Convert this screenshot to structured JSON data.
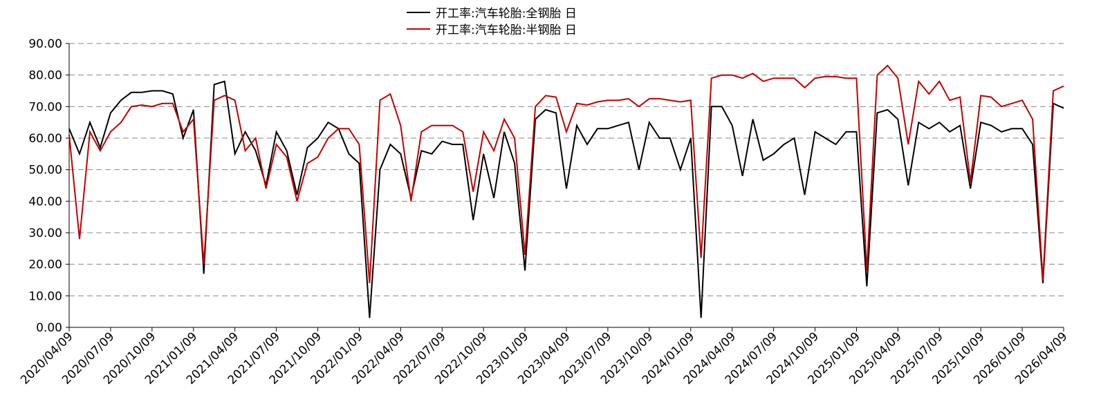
{
  "chart_data": {
    "type": "line",
    "categories": [
      "2020/04/09",
      null,
      null,
      null,
      "2020/07/09",
      null,
      null,
      null,
      "2020/10/09",
      null,
      null,
      null,
      "2021/01/09",
      null,
      null,
      null,
      "2021/04/09",
      null,
      null,
      null,
      "2021/07/09",
      null,
      null,
      null,
      "2021/10/09",
      null,
      null,
      null,
      "2022/01/09",
      null,
      null,
      null,
      "2022/04/09",
      null,
      null,
      null,
      "2022/07/09",
      null,
      null,
      null,
      "2022/10/09",
      null,
      null,
      null,
      "2023/01/09",
      null,
      null,
      null,
      "2023/04/09",
      null,
      null,
      null,
      "2023/07/09",
      null,
      null,
      null,
      "2023/10/09",
      null,
      null,
      null,
      "2024/01/09",
      null,
      null,
      null,
      "2024/04/09",
      null,
      null,
      null,
      "2024/07/09",
      null,
      null,
      null,
      "2024/10/09",
      null,
      null,
      null,
      "2025/01/09",
      null,
      null,
      null,
      "2025/04/09",
      null,
      null,
      null,
      "2025/07/09",
      null,
      null,
      null,
      "2025/10/09",
      null,
      null,
      null,
      "2026/01/09",
      null,
      null,
      null,
      "2026/04/09"
    ],
    "series": [
      {
        "name": "开工率:汽车轮胎:全钢胎 日",
        "color": "#000000",
        "values": [
          63,
          55,
          65,
          57,
          68,
          72,
          74.5,
          74.5,
          75,
          75,
          74,
          60,
          69,
          17,
          77,
          78,
          55,
          62,
          56,
          45,
          62,
          56,
          42,
          57,
          60,
          65,
          63,
          55,
          52,
          3,
          50,
          58,
          55,
          41,
          56,
          55,
          59,
          58,
          58,
          34,
          55,
          41,
          62,
          52,
          18,
          66,
          69,
          68,
          44,
          64,
          58,
          63,
          63,
          64,
          65,
          50,
          65,
          60,
          60,
          50,
          60,
          3,
          70,
          70,
          64,
          48,
          66,
          53,
          55,
          58,
          60,
          42,
          62,
          60,
          58,
          62,
          62,
          13,
          68,
          69,
          66,
          45,
          65,
          63,
          65,
          62,
          64,
          44,
          65,
          64,
          62,
          63,
          63,
          58,
          14,
          71,
          69.5
        ]
      },
      {
        "name": "开工率:汽车轮胎:半钢胎 日",
        "color": "#c00000",
        "values": [
          61,
          28,
          62,
          56,
          62,
          65,
          70,
          70.5,
          70,
          71,
          71,
          62,
          66,
          20,
          72,
          73.5,
          72,
          56,
          60,
          44,
          58,
          54,
          40,
          52,
          54,
          60,
          63,
          63,
          58,
          14,
          72,
          74,
          64,
          40,
          62,
          64,
          64,
          64,
          62,
          43,
          62,
          56,
          66,
          60,
          23,
          70,
          73.5,
          73,
          62,
          71,
          70.5,
          71.5,
          72,
          72,
          72.5,
          70,
          72.5,
          72.5,
          72,
          71.5,
          72,
          22,
          79,
          80,
          80,
          79,
          80.5,
          78,
          79,
          79,
          79,
          76,
          79,
          79.5,
          79.5,
          79,
          79,
          18,
          80,
          83,
          79,
          58,
          78,
          74,
          78,
          72,
          73,
          46,
          73.5,
          73,
          70,
          71,
          72,
          66,
          15,
          75,
          76.5
        ]
      }
    ],
    "ylim": [
      0,
      90
    ],
    "yticks": [
      {
        "value": 0,
        "label": "0.00"
      },
      {
        "value": 10,
        "label": "10.00"
      },
      {
        "value": 20,
        "label": "20.00"
      },
      {
        "value": 30,
        "label": "30.00"
      },
      {
        "value": 40,
        "label": "40.00"
      },
      {
        "value": 50,
        "label": "50.00"
      },
      {
        "value": 60,
        "label": "60.00"
      },
      {
        "value": 70,
        "label": "70.00"
      },
      {
        "value": 80,
        "label": "80.00"
      },
      {
        "value": 90,
        "label": "90.00"
      }
    ],
    "grid": true
  }
}
